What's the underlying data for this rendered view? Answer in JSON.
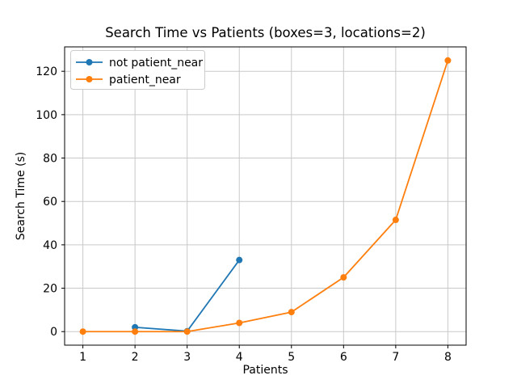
{
  "figure": {
    "title": "Search Time vs Patients (boxes=3, locations=2)"
  },
  "chart_data": {
    "type": "line",
    "title": "Search Time vs Patients (boxes=3, locations=2)",
    "xlabel": "Patients",
    "ylabel": "Search Time (s)",
    "xlim": [
      0.65,
      8.35
    ],
    "ylim": [
      -6.25,
      131.25
    ],
    "xticks": [
      1,
      2,
      3,
      4,
      5,
      6,
      7,
      8
    ],
    "yticks": [
      0,
      20,
      40,
      60,
      80,
      100,
      120
    ],
    "grid": true,
    "legend_position": "upper-left",
    "series": [
      {
        "name": "not patient_near",
        "color": "#1f77b4",
        "marker": "circle",
        "x": [
          2,
          3,
          4
        ],
        "y": [
          2,
          0.2,
          33
        ]
      },
      {
        "name": "patient_near",
        "color": "#ff7f0e",
        "marker": "circle",
        "x": [
          1,
          2,
          3,
          4,
          5,
          6,
          7,
          8
        ],
        "y": [
          0,
          0,
          0,
          4,
          9,
          25,
          51.5,
          125
        ]
      }
    ]
  },
  "colors": {
    "background": "#ffffff",
    "grid": "#c9c9c9",
    "axis": "#000000",
    "tick": "#000000",
    "legend_border": "#cccccc",
    "legend_fill": "#ffffff"
  }
}
